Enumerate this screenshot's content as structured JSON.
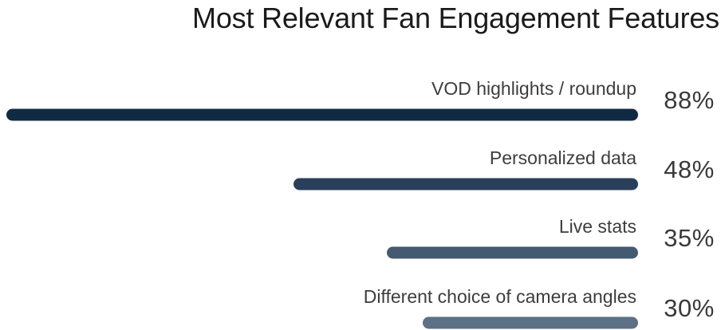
{
  "chart_data": {
    "type": "bar",
    "orientation": "horizontal",
    "title": "Most Relevant Fan Engagement Features",
    "categories": [
      "VOD highlights / roundup",
      "Personalized data",
      "Live stats",
      "Different choice of camera angles"
    ],
    "values": [
      88,
      48,
      35,
      30
    ],
    "value_labels": [
      "88%",
      "48%",
      "35%",
      "30%"
    ],
    "unit": "%",
    "bar_colors": [
      "#102a43",
      "#2a3f5a",
      "#445a70",
      "#5c7086"
    ],
    "xlim": [
      0,
      88
    ],
    "grid": false,
    "legend": "none"
  }
}
